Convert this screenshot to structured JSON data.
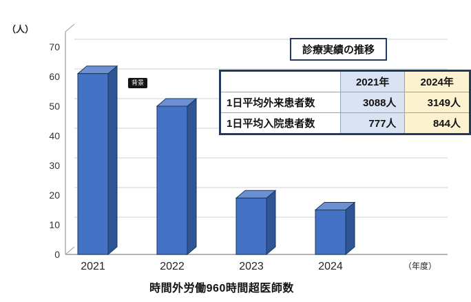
{
  "chart_data": {
    "type": "bar",
    "categories": [
      "2021",
      "2022",
      "2023",
      "2024"
    ],
    "values": [
      61,
      50,
      19,
      15
    ],
    "title": "時間外労働960時間超医師数",
    "xlabel": "（年度）",
    "ylabel": "（人）",
    "ylim": [
      0,
      70
    ],
    "ytick_step": 10,
    "grid": true,
    "style": "3d-bar",
    "colors": {
      "bar_front": "#4472c4",
      "bar_side": "#2f5597",
      "bar_top": "#6d90d2",
      "bar_edge": "#17375e",
      "gridline": "#cfcfcf",
      "axis": "#9a9a9a",
      "tick_text": "#333333"
    }
  },
  "badge": {
    "label": "背景"
  },
  "table": {
    "title": "診療実績の推移",
    "columns": [
      "",
      "2021年",
      "2024年"
    ],
    "rows": [
      {
        "label": "1日平均外来患者数",
        "v2021": "3088人",
        "v2024": "3149人"
      },
      {
        "label": "1日平均入院患者数",
        "v2021": "777人",
        "v2024": "844人"
      }
    ],
    "colors": {
      "border": "#1f3864",
      "col_2021_bg": "#dae3f3",
      "col_2024_bg": "#fdf2cf"
    }
  }
}
